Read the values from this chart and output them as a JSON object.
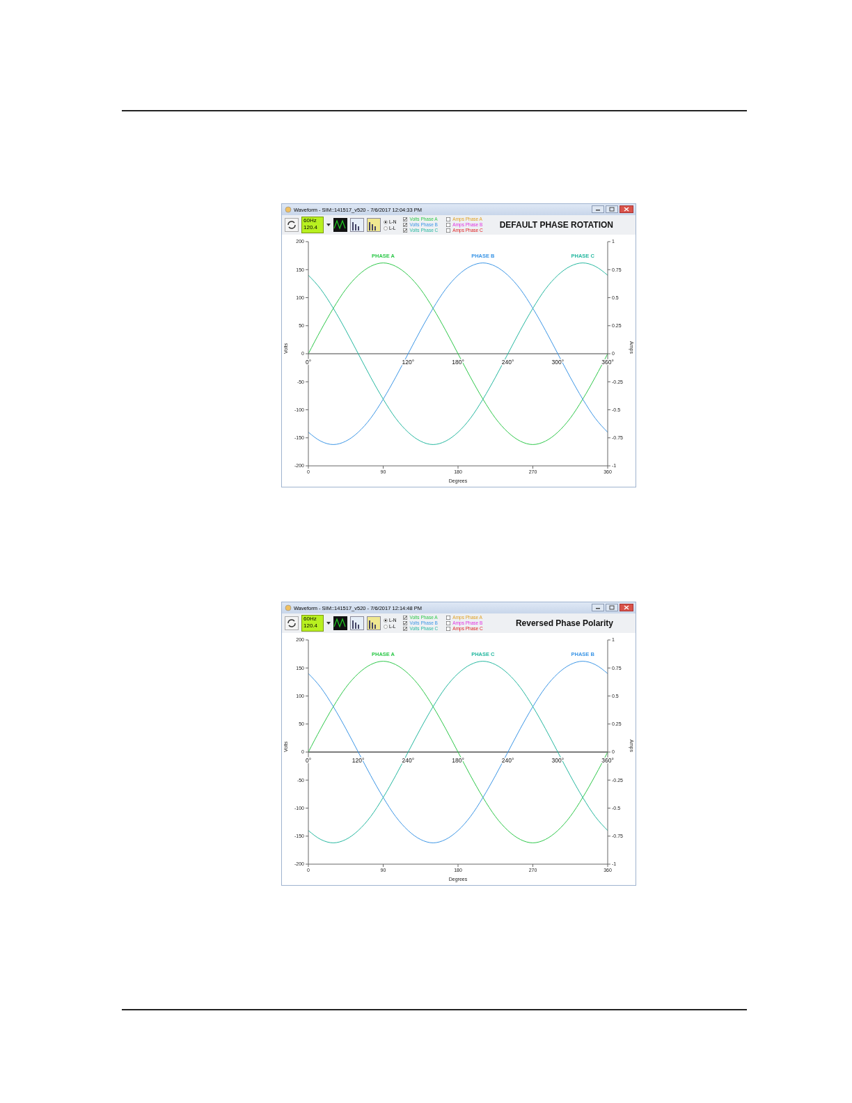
{
  "chart_data": [
    {
      "type": "line",
      "title": "DEFAULT PHASE ROTATION",
      "xlabel": "Degrees",
      "ylabel": "Volts",
      "y2label": "Amps",
      "annotations": [
        "Waveform - SIM::141517_v520 - 7/6/2017 12:04:33 PM",
        "60Hz",
        "120.4",
        "L-N",
        "L-L",
        "Amps Phase A",
        "Amps Phase B",
        "Amps Phase C",
        {
          "text": "PHASE A",
          "x": 90,
          "y": 162
        },
        {
          "text": "PHASE B",
          "x": 210,
          "y": 162
        },
        {
          "text": "PHASE C",
          "x": 330,
          "y": 162
        },
        {
          "text": "0°",
          "x": 0,
          "y": 0
        },
        {
          "text": "120°",
          "x": 120,
          "y": 0
        },
        {
          "text": "180°",
          "x": 180,
          "y": 0
        },
        {
          "text": "240°",
          "x": 240,
          "y": 0
        },
        {
          "text": "300°",
          "x": 300,
          "y": 0
        },
        {
          "text": "360°",
          "x": 360,
          "y": 0
        }
      ],
      "x": [
        0,
        15,
        30,
        45,
        60,
        75,
        90,
        105,
        120,
        135,
        150,
        165,
        180,
        195,
        210,
        225,
        240,
        255,
        270,
        285,
        300,
        315,
        330,
        345,
        360
      ],
      "series": [
        {
          "name": "Volts Phase A",
          "color": "#2ec84a",
          "values": [
            0,
            42,
            81,
            115,
            140,
            156,
            162,
            156,
            140,
            115,
            81,
            42,
            0,
            -42,
            -81,
            -115,
            -140,
            -156,
            -162,
            -156,
            -140,
            -115,
            -81,
            -42,
            0
          ]
        },
        {
          "name": "Volts Phase B",
          "color": "#3c96e6",
          "values": [
            -140,
            -156,
            -162,
            -156,
            -140,
            -115,
            -81,
            -42,
            0,
            42,
            81,
            115,
            140,
            156,
            162,
            156,
            140,
            115,
            81,
            42,
            0,
            -42,
            -81,
            -115,
            -140
          ]
        },
        {
          "name": "Volts Phase C",
          "color": "#26b8a0",
          "values": [
            140,
            115,
            81,
            42,
            0,
            -42,
            -81,
            -115,
            -140,
            -156,
            -162,
            -156,
            -140,
            -115,
            -81,
            -42,
            0,
            42,
            81,
            115,
            140,
            156,
            162,
            156,
            140
          ]
        }
      ],
      "xlim": [
        0,
        360
      ],
      "xticks": [
        0,
        90,
        180,
        270,
        360
      ],
      "ylim": [
        -200,
        200
      ],
      "yticks": [
        -200,
        -150,
        -100,
        -50,
        0,
        50,
        100,
        150,
        200
      ],
      "y2lim": [
        -1,
        1
      ],
      "y2ticks": [
        -1,
        -0.75,
        -0.5,
        -0.25,
        0,
        0.25,
        0.5,
        0.75,
        1
      ],
      "ref_lines": [
        {
          "axis": "y",
          "value": 0,
          "color": "#808080"
        }
      ],
      "grid": false,
      "legend": "top left",
      "marker": "none",
      "line_style": "solid"
    },
    {
      "type": "line",
      "title": "Reversed Phase Polarity",
      "xlabel": "Degrees",
      "ylabel": "Volts",
      "y2label": "Amps",
      "annotations": [
        "Waveform - SIM::141517_v520 - 7/6/2017 12:14:48 PM",
        "60Hz",
        "120.4",
        "L-N",
        "L-L",
        "Amps Phase A",
        "Amps Phase B",
        "Amps Phase C",
        {
          "text": "PHASE A",
          "x": 90,
          "y": 162
        },
        {
          "text": "PHASE C",
          "x": 210,
          "y": 162
        },
        {
          "text": "PHASE B",
          "x": 330,
          "y": 162
        },
        {
          "text": "0°",
          "x": 0,
          "y": 0
        },
        {
          "text": "120°",
          "x": 60,
          "y": 0
        },
        {
          "text": "240°",
          "x": 120,
          "y": 0
        },
        {
          "text": "180°",
          "x": 180,
          "y": 0
        },
        {
          "text": "240°",
          "x": 240,
          "y": 0
        },
        {
          "text": "300°",
          "x": 300,
          "y": 0
        },
        {
          "text": "360°",
          "x": 360,
          "y": 0
        }
      ],
      "x": [
        0,
        15,
        30,
        45,
        60,
        75,
        90,
        105,
        120,
        135,
        150,
        165,
        180,
        195,
        210,
        225,
        240,
        255,
        270,
        285,
        300,
        315,
        330,
        345,
        360
      ],
      "series": [
        {
          "name": "Volts Phase A",
          "color": "#2ec84a",
          "values": [
            0,
            42,
            81,
            115,
            140,
            156,
            162,
            156,
            140,
            115,
            81,
            42,
            0,
            -42,
            -81,
            -115,
            -140,
            -156,
            -162,
            -156,
            -140,
            -115,
            -81,
            -42,
            0
          ]
        },
        {
          "name": "Volts Phase B",
          "color": "#3c96e6",
          "values": [
            140,
            115,
            81,
            42,
            0,
            -42,
            -81,
            -115,
            -140,
            -156,
            -162,
            -156,
            -140,
            -115,
            -81,
            -42,
            0,
            42,
            81,
            115,
            140,
            156,
            162,
            156,
            140
          ]
        },
        {
          "name": "Volts Phase C",
          "color": "#26b8a0",
          "values": [
            -140,
            -156,
            -162,
            -156,
            -140,
            -115,
            -81,
            -42,
            0,
            42,
            81,
            115,
            140,
            156,
            162,
            156,
            140,
            115,
            81,
            42,
            0,
            -42,
            -81,
            -115,
            -140
          ]
        }
      ],
      "xlim": [
        0,
        360
      ],
      "xticks": [
        0,
        90,
        180,
        270,
        360
      ],
      "ylim": [
        -200,
        200
      ],
      "yticks": [
        -200,
        -150,
        -100,
        -50,
        0,
        50,
        100,
        150,
        200
      ],
      "y2lim": [
        -1,
        1
      ],
      "y2ticks": [
        -1,
        -0.75,
        -0.5,
        -0.25,
        0,
        0.25,
        0.5,
        0.75,
        1
      ],
      "ref_lines": [
        {
          "axis": "y",
          "value": 0,
          "color": "#505050"
        }
      ],
      "grid": false,
      "legend": "top left",
      "marker": "none",
      "line_style": "solid"
    }
  ]
}
